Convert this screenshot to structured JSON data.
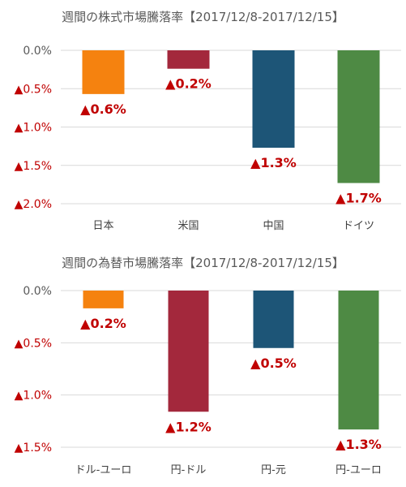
{
  "chart_data": [
    {
      "type": "bar",
      "title": "週間の株式市場騰落率【2017/12/8-2017/12/15】",
      "categories": [
        "日本",
        "米国",
        "中国",
        "ドイツ"
      ],
      "values": [
        -0.57,
        -0.24,
        -1.27,
        -1.73
      ],
      "data_labels": [
        "▲0.6%",
        "▲0.2%",
        "▲1.3%",
        "▲1.7%"
      ],
      "colors": [
        "#f5820f",
        "#a3283c",
        "#1d5577",
        "#4e8a44"
      ],
      "ylim": [
        -2.0,
        0.0
      ],
      "yticks": [
        0.0,
        -0.5,
        -1.0,
        -1.5,
        -2.0
      ],
      "ytick_labels": [
        "0.0%",
        "▲0.5%",
        "▲1.0%",
        "▲1.5%",
        "▲2.0%"
      ],
      "grid": true,
      "legend": "none"
    },
    {
      "type": "bar",
      "title": "週間の為替市場騰落率【2017/12/8-2017/12/15】",
      "categories": [
        "ドル-ユーロ",
        "円-ドル",
        "円-元",
        "円-ユーロ"
      ],
      "values": [
        -0.17,
        -1.16,
        -0.55,
        -1.33
      ],
      "data_labels": [
        "▲0.2%",
        "▲1.2%",
        "▲0.5%",
        "▲1.3%"
      ],
      "colors": [
        "#f5820f",
        "#a3283c",
        "#1d5577",
        "#4e8a44"
      ],
      "ylim": [
        -1.5,
        0.0
      ],
      "yticks": [
        0.0,
        -0.5,
        -1.0,
        -1.5
      ],
      "ytick_labels": [
        "0.0%",
        "▲0.5%",
        "▲1.0%",
        "▲1.5%"
      ],
      "grid": true,
      "legend": "none"
    }
  ]
}
